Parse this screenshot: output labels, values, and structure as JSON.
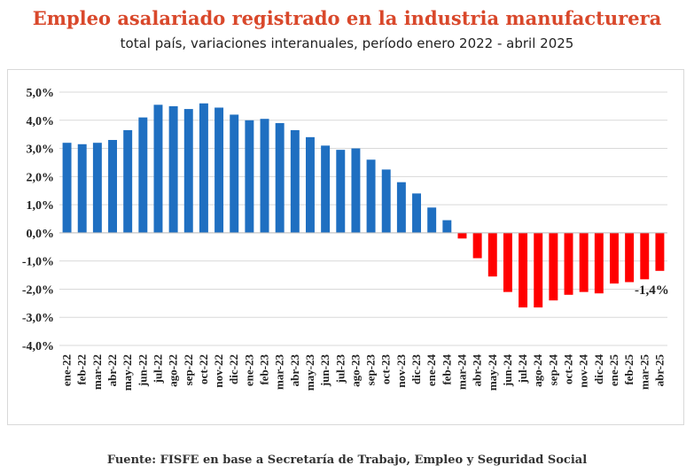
{
  "colors": {
    "title": "#d9482b",
    "positive": "#1f6fc1",
    "negative": "#ff0000",
    "grid": "#d9d9d9"
  },
  "chart_data": {
    "type": "bar",
    "title": "Empleo asalariado registrado en la industria manufacturera",
    "subtitle": "total país, variaciones interanuales, período enero 2022 - abril 2025",
    "source": "Fuente: FISFE en base a Secretaría de Trabajo, Empleo y Seguridad Social",
    "categories": [
      "ene-22",
      "feb-22",
      "mar-22",
      "abr-22",
      "may-22",
      "jun-22",
      "jul-22",
      "ago-22",
      "sep-22",
      "oct-22",
      "nov-22",
      "dic-22",
      "ene-23",
      "feb-23",
      "mar-23",
      "abr-23",
      "may-23",
      "jun-23",
      "jul-23",
      "ago-23",
      "sep-23",
      "oct-23",
      "nov-23",
      "dic-23",
      "ene-24",
      "feb-24",
      "mar-24",
      "abr-24",
      "may-24",
      "jun-24",
      "jul-24",
      "ago-24",
      "sep-24",
      "oct-24",
      "nov-24",
      "dic-24",
      "ene-25",
      "feb-25",
      "mar-25",
      "abr-25"
    ],
    "values": [
      3.2,
      3.15,
      3.2,
      3.3,
      3.65,
      4.1,
      4.55,
      4.5,
      4.4,
      4.6,
      4.45,
      4.2,
      4.0,
      4.05,
      3.9,
      3.65,
      3.4,
      3.1,
      2.95,
      3.0,
      2.6,
      2.25,
      1.8,
      1.4,
      0.9,
      0.45,
      -0.2,
      -0.9,
      -1.55,
      -2.1,
      -2.65,
      -2.65,
      -2.4,
      -2.2,
      -2.1,
      -2.15,
      -1.8,
      -1.75,
      -1.65,
      -1.35
    ],
    "yticks": [
      "5,0%",
      "4,0%",
      "3,0%",
      "2,0%",
      "1,0%",
      "0,0%",
      "-1,0%",
      "-2,0%",
      "-3,0%",
      "-4,0%"
    ],
    "ylim": [
      -4,
      5
    ],
    "grid": true,
    "annotation": {
      "category": "abr-25",
      "text": "-1,4%"
    }
  }
}
